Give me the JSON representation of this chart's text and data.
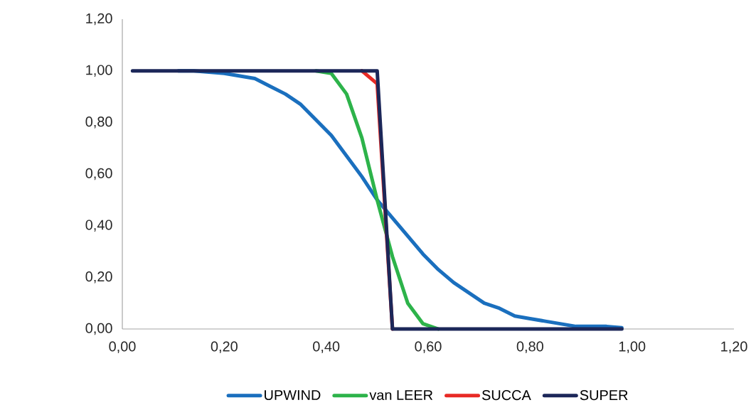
{
  "chart_data": {
    "type": "line",
    "x": [
      0.02,
      0.05,
      0.08,
      0.11,
      0.14,
      0.17,
      0.2,
      0.23,
      0.26,
      0.29,
      0.32,
      0.35,
      0.38,
      0.41,
      0.44,
      0.47,
      0.5,
      0.53,
      0.56,
      0.59,
      0.62,
      0.65,
      0.68,
      0.71,
      0.74,
      0.77,
      0.8,
      0.83,
      0.86,
      0.89,
      0.92,
      0.95,
      0.98
    ],
    "series": [
      {
        "name": "UPWIND",
        "color": "#1a6fbe",
        "values": [
          null,
          null,
          null,
          1.0,
          1.0,
          0.995,
          0.99,
          0.98,
          0.97,
          0.94,
          0.91,
          0.87,
          0.81,
          0.75,
          0.67,
          0.59,
          0.5,
          0.43,
          0.36,
          0.29,
          0.23,
          0.18,
          0.14,
          0.1,
          0.08,
          0.05,
          0.04,
          0.03,
          0.02,
          0.01,
          0.01,
          0.01,
          0.005
        ]
      },
      {
        "name": "van LEER",
        "color": "#2db34a",
        "values": [
          null,
          null,
          null,
          null,
          null,
          null,
          null,
          null,
          null,
          null,
          null,
          null,
          1.0,
          0.99,
          0.91,
          0.74,
          0.5,
          0.28,
          0.1,
          0.02,
          0.0,
          null,
          null,
          null,
          null,
          null,
          null,
          null,
          null,
          null,
          null,
          null,
          null
        ]
      },
      {
        "name": "SUCCA",
        "color": "#e82a25",
        "values": [
          null,
          null,
          null,
          null,
          null,
          null,
          null,
          null,
          null,
          null,
          null,
          null,
          null,
          null,
          null,
          1.0,
          0.95,
          0.0,
          null,
          null,
          null,
          null,
          null,
          null,
          null,
          null,
          null,
          null,
          null,
          null,
          null,
          null,
          null
        ]
      },
      {
        "name": "SUPER",
        "color": "#1c2759",
        "values": [
          1.0,
          1.0,
          1.0,
          1.0,
          1.0,
          1.0,
          1.0,
          1.0,
          1.0,
          1.0,
          1.0,
          1.0,
          1.0,
          1.0,
          1.0,
          1.0,
          1.0,
          0.0,
          0.0,
          0.0,
          0.0,
          0.0,
          0.0,
          0.0,
          0.0,
          0.0,
          0.0,
          0.0,
          0.0,
          0.0,
          0.0,
          0.0,
          0.0
        ]
      }
    ],
    "xlim": [
      0,
      1.2
    ],
    "ylim": [
      0,
      1.2
    ],
    "xticks": [
      {
        "value": 0,
        "label": "0,00"
      },
      {
        "value": 0.2,
        "label": "0,20"
      },
      {
        "value": 0.4,
        "label": "0,40"
      },
      {
        "value": 0.6,
        "label": "0,60"
      },
      {
        "value": 0.8,
        "label": "0,80"
      },
      {
        "value": 1.0,
        "label": "1,00"
      },
      {
        "value": 1.2,
        "label": "1,20"
      }
    ],
    "yticks": [
      {
        "value": 0,
        "label": "0,00"
      },
      {
        "value": 0.2,
        "label": "0,20"
      },
      {
        "value": 0.4,
        "label": "0,40"
      },
      {
        "value": 0.6,
        "label": "0,60"
      },
      {
        "value": 0.8,
        "label": "0,80"
      },
      {
        "value": 1.0,
        "label": "1,00"
      },
      {
        "value": 1.2,
        "label": "1,20"
      }
    ],
    "legend": "bottom",
    "marker": "none",
    "line_style": "solid"
  }
}
